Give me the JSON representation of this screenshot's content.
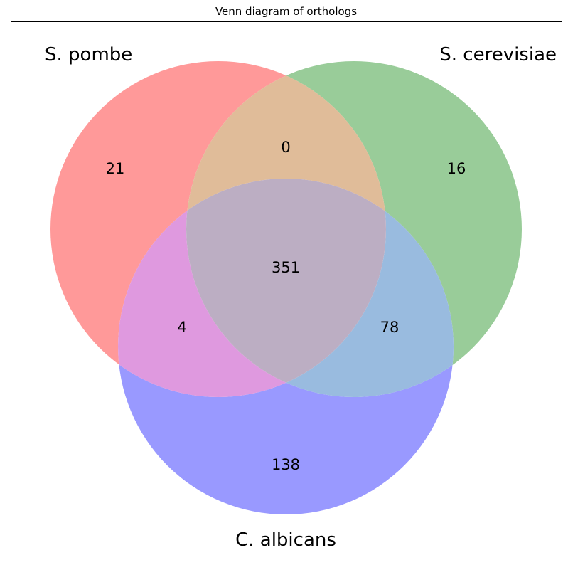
{
  "chart_data": {
    "type": "venn",
    "title": "Venn diagram of orthologs",
    "sets": [
      {
        "name": "S. pombe",
        "color": "#ff9999"
      },
      {
        "name": "S. cerevisiae",
        "color": "#99cc99"
      },
      {
        "name": "C. albicans",
        "color": "#9999ff"
      }
    ],
    "regions": [
      {
        "sets": [
          "S. pombe"
        ],
        "value": 21
      },
      {
        "sets": [
          "S. cerevisiae"
        ],
        "value": 16
      },
      {
        "sets": [
          "C. albicans"
        ],
        "value": 138
      },
      {
        "sets": [
          "S. pombe",
          "S. cerevisiae"
        ],
        "value": 0
      },
      {
        "sets": [
          "S. pombe",
          "C. albicans"
        ],
        "value": 4
      },
      {
        "sets": [
          "S. cerevisiae",
          "C. albicans"
        ],
        "value": 78
      },
      {
        "sets": [
          "S. pombe",
          "S. cerevisiae",
          "C. albicans"
        ],
        "value": 351
      }
    ],
    "colors": {
      "pombe_cerevisiae": "#e0bc99",
      "pombe_albicans": "#df99df",
      "cerevisiae_albicans": "#99bbdf",
      "all_three": "#bcaec3"
    }
  }
}
